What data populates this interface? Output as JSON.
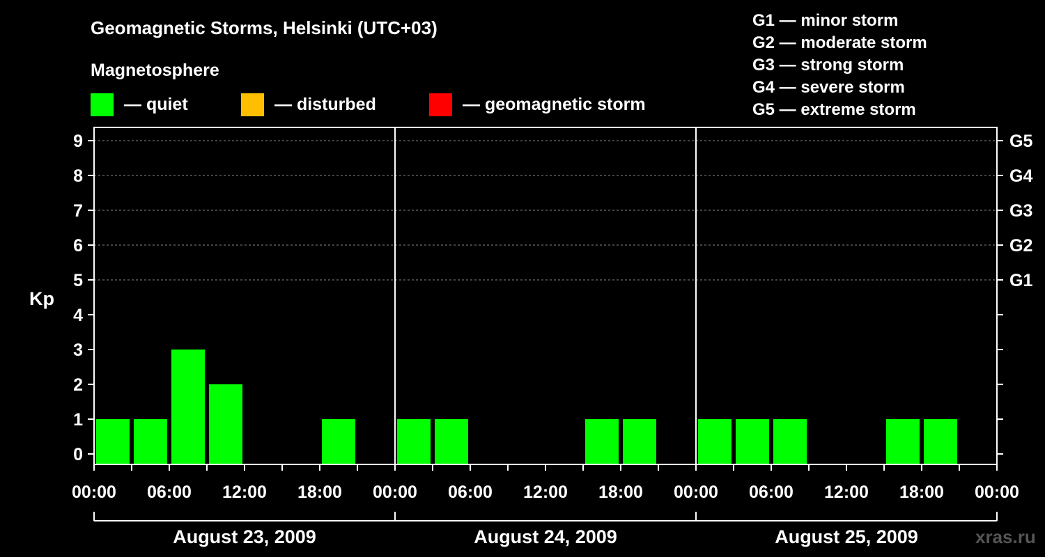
{
  "title": "Geomagnetic Storms, Helsinki (UTC+03)",
  "legend": {
    "heading": "Magnetosphere",
    "items": [
      {
        "label": "— quiet",
        "color": "#00ff00"
      },
      {
        "label": "— disturbed",
        "color": "#ffbf00"
      },
      {
        "label": "— geomagnetic storm",
        "color": "#ff0000"
      }
    ]
  },
  "storm_scale": [
    "G1 — minor storm",
    "G2 — moderate storm",
    "G3 — strong storm",
    "G4 — severe storm",
    "G5 — extreme storm"
  ],
  "watermark": "xras.ru",
  "chart_data": {
    "type": "bar",
    "ylabel": "Kp",
    "ylim": [
      0,
      9
    ],
    "yticks": [
      "0",
      "1",
      "2",
      "3",
      "4",
      "5",
      "6",
      "7",
      "8",
      "9"
    ],
    "right_axis": [
      {
        "kp": 5,
        "label": "G1"
      },
      {
        "kp": 6,
        "label": "G2"
      },
      {
        "kp": 7,
        "label": "G3"
      },
      {
        "kp": 8,
        "label": "G4"
      },
      {
        "kp": 9,
        "label": "G5"
      }
    ],
    "grid": "dashed horizontal at Kp 5-9",
    "xtick_labels": [
      "00:00",
      "06:00",
      "12:00",
      "18:00",
      "00:00",
      "06:00",
      "12:00",
      "18:00",
      "00:00",
      "06:00",
      "12:00",
      "18:00",
      "00:00"
    ],
    "days": [
      {
        "date": "August 23, 2009",
        "kp": [
          1,
          1,
          3,
          2,
          0,
          0,
          1,
          0
        ]
      },
      {
        "date": "August 24, 2009",
        "kp": [
          1,
          1,
          0,
          0,
          0,
          1,
          1,
          0
        ]
      },
      {
        "date": "August 25, 2009",
        "kp": [
          1,
          1,
          1,
          0,
          0,
          1,
          1,
          0
        ]
      }
    ],
    "interval_hours": 3,
    "quiet_color": "#00ff00"
  }
}
